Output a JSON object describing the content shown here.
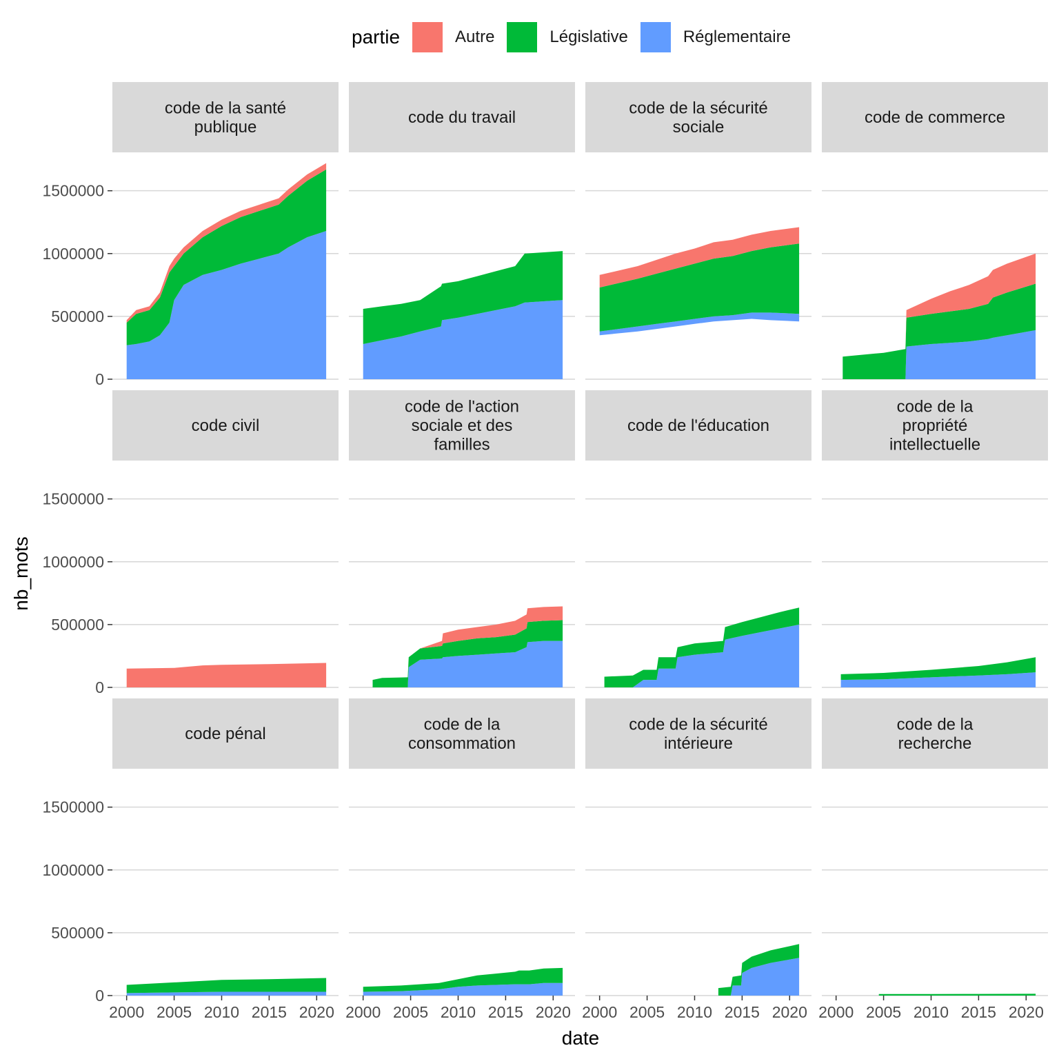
{
  "legend": {
    "title": "partie",
    "items": [
      {
        "label": "Autre",
        "color": "#F8766D"
      },
      {
        "label": "Législative",
        "color": "#00BA38"
      },
      {
        "label": "Réglementaire",
        "color": "#619CFF"
      }
    ]
  },
  "chart_data": {
    "type": "area",
    "stacked": true,
    "facet_layout": "3 rows x 4 columns, shared axes",
    "xlabel": "date",
    "ylabel": "nb_mots",
    "xlim": [
      1998.5,
      2022.3
    ],
    "ylim": [
      0,
      1800000
    ],
    "x_ticks": [
      2000,
      2005,
      2010,
      2015,
      2020
    ],
    "y_ticks": [
      0,
      500000,
      1000000,
      1500000
    ],
    "y_tick_labels": [
      "0",
      "500000",
      "1000000",
      "1500000"
    ],
    "grid": "horizontal major gridlines only",
    "legend_position": "top",
    "series_order": [
      "Autre",
      "Législative",
      "Réglementaire"
    ],
    "facets": [
      {
        "label": "code de la santé\npublique",
        "x": [
          2000,
          2001,
          2002.4,
          2003.5,
          2004.5,
          2005,
          2006,
          2008,
          2010,
          2012,
          2014,
          2016,
          2017,
          2019,
          2021
        ],
        "Réglementaire": [
          270000,
          280000,
          300000,
          350000,
          450000,
          630000,
          750000,
          830000,
          870000,
          920000,
          960000,
          1000000,
          1050000,
          1130000,
          1180000
        ],
        "Législative": [
          180000,
          240000,
          250000,
          300000,
          400000,
          270000,
          250000,
          300000,
          350000,
          370000,
          380000,
          390000,
          410000,
          450000,
          490000
        ],
        "Autre": [
          20000,
          30000,
          30000,
          40000,
          50000,
          60000,
          50000,
          50000,
          50000,
          50000,
          50000,
          50000,
          50000,
          50000,
          50000
        ]
      },
      {
        "label": "code du travail",
        "x": [
          2000,
          2002,
          2004,
          2006,
          2008.2,
          2008.3,
          2010,
          2012,
          2014,
          2016,
          2017,
          2019,
          2021
        ],
        "Réglementaire": [
          280000,
          310000,
          340000,
          380000,
          420000,
          470000,
          490000,
          520000,
          550000,
          580000,
          610000,
          620000,
          630000
        ],
        "Législative": [
          280000,
          270000,
          260000,
          250000,
          320000,
          290000,
          290000,
          300000,
          310000,
          320000,
          390000,
          390000,
          390000
        ],
        "Autre": [
          0,
          0,
          0,
          0,
          0,
          0,
          0,
          0,
          0,
          0,
          0,
          0,
          0
        ]
      },
      {
        "label": "code de la sécurité\nsociale",
        "x": [
          2000,
          2004,
          2006,
          2008,
          2010,
          2012,
          2014,
          2016,
          2018,
          2021
        ],
        "Réglementaire": [
          380000,
          420000,
          440000,
          460000,
          480000,
          500000,
          510000,
          530000,
          530000,
          520000
        ],
        "Législative": [
          350000,
          380000,
          400000,
          420000,
          440000,
          460000,
          470000,
          490000,
          520000,
          560000
        ],
        "Autre": [
          100000,
          100000,
          110000,
          120000,
          120000,
          130000,
          130000,
          130000,
          130000,
          130000
        ],
        "y_lower_bound": [
          350000,
          380000,
          400000,
          420000,
          440000,
          460000,
          470000,
          480000,
          470000,
          460000
        ]
      },
      {
        "label": "code de commerce",
        "x": [
          2000.7,
          2005,
          2007.3,
          2007.4,
          2010,
          2012,
          2014,
          2016,
          2016.5,
          2018,
          2021
        ],
        "Réglementaire": [
          0,
          0,
          0,
          260000,
          280000,
          290000,
          300000,
          320000,
          330000,
          350000,
          390000
        ],
        "Législative": [
          180000,
          210000,
          240000,
          230000,
          240000,
          250000,
          260000,
          280000,
          320000,
          340000,
          370000
        ],
        "Autre": [
          0,
          0,
          0,
          60000,
          120000,
          160000,
          190000,
          220000,
          220000,
          230000,
          240000
        ]
      },
      {
        "label": "code civil",
        "x": [
          2000,
          2005,
          2008,
          2010,
          2015,
          2021
        ],
        "Réglementaire": [
          0,
          0,
          0,
          0,
          0,
          0
        ],
        "Législative": [
          0,
          0,
          0,
          0,
          0,
          0
        ],
        "Autre": [
          150000,
          155000,
          175000,
          180000,
          185000,
          195000
        ]
      },
      {
        "label": "code de l'action\nsociale et des\nfamilles",
        "x": [
          2001,
          2002,
          2004.7,
          2004.8,
          2006,
          2008.3,
          2008.4,
          2010,
          2012,
          2014,
          2016,
          2017.2,
          2017.3,
          2019,
          2021
        ],
        "Réglementaire": [
          0,
          0,
          0,
          160000,
          220000,
          230000,
          240000,
          250000,
          260000,
          270000,
          280000,
          320000,
          360000,
          370000,
          370000
        ],
        "Législative": [
          60000,
          75000,
          80000,
          80000,
          90000,
          100000,
          110000,
          120000,
          130000,
          130000,
          140000,
          150000,
          160000,
          160000,
          165000
        ],
        "Autre": [
          0,
          0,
          0,
          0,
          0,
          40000,
          80000,
          90000,
          90000,
          100000,
          110000,
          110000,
          110000,
          110000,
          110000
        ]
      },
      {
        "label": "code de l'éducation",
        "x": [
          2000.5,
          2003.5,
          2004.6,
          2006,
          2006.2,
          2008,
          2008.2,
          2010,
          2013,
          2013.2,
          2015,
          2017,
          2019,
          2021
        ],
        "Réglementaire": [
          0,
          0,
          60000,
          60000,
          150000,
          150000,
          240000,
          260000,
          280000,
          380000,
          410000,
          440000,
          470000,
          500000
        ],
        "Législative": [
          85000,
          95000,
          80000,
          80000,
          90000,
          90000,
          80000,
          90000,
          90000,
          100000,
          110000,
          120000,
          130000,
          135000
        ],
        "Autre": [
          0,
          0,
          0,
          0,
          0,
          0,
          0,
          0,
          0,
          0,
          0,
          0,
          0,
          0
        ]
      },
      {
        "label": "code de la\npropriété\nintellectuelle",
        "x": [
          2000.5,
          2005,
          2010,
          2015,
          2018,
          2021
        ],
        "Réglementaire": [
          60000,
          65000,
          80000,
          95000,
          105000,
          120000
        ],
        "Législative": [
          45000,
          50000,
          60000,
          75000,
          95000,
          120000
        ],
        "Autre": [
          0,
          0,
          0,
          0,
          0,
          0
        ]
      },
      {
        "label": "code pénal",
        "x": [
          2000,
          2005,
          2010,
          2015,
          2021
        ],
        "Réglementaire": [
          20000,
          25000,
          30000,
          30000,
          30000
        ],
        "Législative": [
          65000,
          80000,
          95000,
          100000,
          110000
        ],
        "Autre": [
          0,
          0,
          0,
          0,
          0
        ]
      },
      {
        "label": "code de la\nconsommation",
        "x": [
          2000,
          2004,
          2008,
          2010,
          2012,
          2014,
          2016,
          2016.4,
          2017.5,
          2019,
          2021
        ],
        "Réglementaire": [
          30000,
          35000,
          50000,
          70000,
          80000,
          85000,
          90000,
          90000,
          90000,
          100000,
          100000
        ],
        "Législative": [
          40000,
          45000,
          50000,
          60000,
          80000,
          90000,
          100000,
          110000,
          110000,
          115000,
          120000
        ],
        "Autre": [
          0,
          0,
          0,
          0,
          0,
          0,
          0,
          0,
          0,
          0,
          0
        ]
      },
      {
        "label": "code de la sécurité\nintérieure",
        "x": [
          2012.5,
          2013.8,
          2014,
          2014.9,
          2015,
          2016,
          2018,
          2021
        ],
        "Réglementaire": [
          0,
          0,
          80000,
          80000,
          180000,
          220000,
          260000,
          300000
        ],
        "Législative": [
          60000,
          70000,
          70000,
          80000,
          80000,
          90000,
          100000,
          110000
        ],
        "Autre": [
          0,
          0,
          0,
          0,
          0,
          0,
          0,
          0
        ]
      },
      {
        "label": "code de la\nrecherche",
        "x": [
          2004.5,
          2010,
          2015,
          2021
        ],
        "Réglementaire": [
          0,
          0,
          0,
          0
        ],
        "Législative": [
          12000,
          12000,
          13000,
          14000
        ],
        "Autre": [
          0,
          0,
          0,
          0
        ]
      }
    ]
  }
}
